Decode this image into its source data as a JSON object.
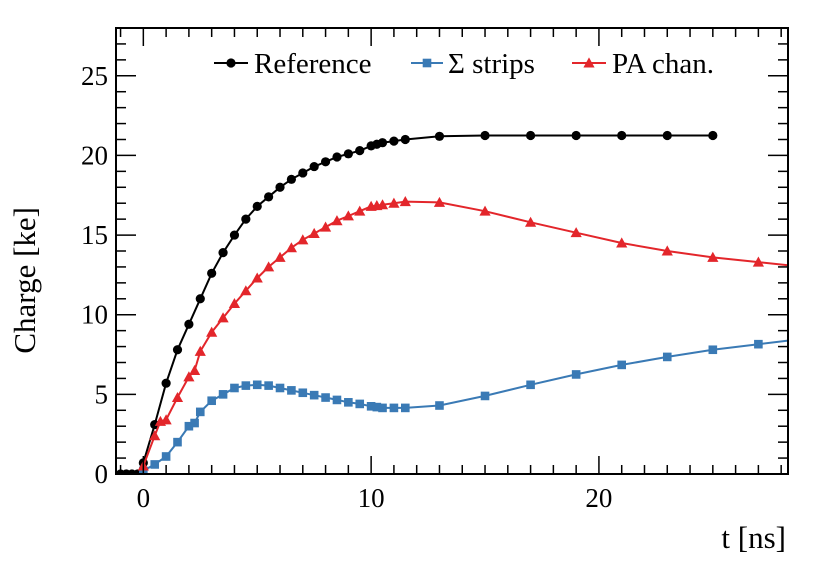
{
  "chart_data": {
    "type": "line",
    "xlabel": "t [ns]",
    "ylabel": "Charge [ke]",
    "xlim": [
      -1.2,
      28.3
    ],
    "ylim": [
      0,
      28
    ],
    "x_major_ticks": [
      0,
      10,
      20
    ],
    "x_tick_labels": [
      "0",
      "10",
      "20"
    ],
    "y_major_ticks": [
      0,
      5,
      10,
      15,
      20,
      25
    ],
    "y_tick_labels": [
      "0",
      "5",
      "10",
      "15",
      "20",
      "25"
    ],
    "legend_position": "top",
    "series": [
      {
        "name": "Reference",
        "color": "#000000",
        "marker": "circle",
        "x": [
          -1.0,
          -0.75,
          -0.5,
          -0.25,
          0.0,
          0.5,
          1.0,
          1.5,
          2.0,
          2.5,
          3.0,
          3.5,
          4.0,
          4.5,
          5.0,
          5.5,
          6.0,
          6.5,
          7.0,
          7.5,
          8.0,
          8.5,
          9.0,
          9.5,
          10.0,
          10.25,
          10.5,
          11.0,
          11.5,
          13.0,
          15.0,
          17.0,
          19.0,
          21.0,
          23.0,
          25.0
        ],
        "y": [
          0.0,
          0.0,
          0.0,
          0.0,
          0.7,
          3.1,
          5.7,
          7.8,
          9.4,
          11.0,
          12.6,
          13.9,
          15.0,
          16.0,
          16.8,
          17.4,
          18.0,
          18.5,
          18.9,
          19.3,
          19.6,
          19.9,
          20.1,
          20.3,
          20.6,
          20.7,
          20.8,
          20.9,
          21.0,
          21.2,
          21.25,
          21.25,
          21.25,
          21.25,
          21.25,
          21.25
        ]
      },
      {
        "name": "Σ strips",
        "color": "#3a7ab5",
        "marker": "square",
        "x": [
          0.0,
          0.5,
          1.0,
          1.5,
          2.0,
          2.25,
          2.5,
          3.0,
          3.5,
          4.0,
          4.5,
          5.0,
          5.5,
          6.0,
          6.5,
          7.0,
          7.5,
          8.0,
          8.5,
          9.0,
          9.5,
          10.0,
          10.25,
          10.5,
          11.0,
          11.5,
          13.0,
          15.0,
          17.0,
          19.0,
          21.0,
          23.0,
          25.0,
          27.0
        ],
        "y": [
          0.2,
          0.6,
          1.1,
          2.0,
          3.0,
          3.2,
          3.9,
          4.6,
          5.0,
          5.4,
          5.55,
          5.6,
          5.55,
          5.4,
          5.25,
          5.1,
          4.95,
          4.8,
          4.65,
          4.5,
          4.4,
          4.25,
          4.2,
          4.15,
          4.15,
          4.15,
          4.3,
          4.9,
          5.6,
          6.25,
          6.85,
          7.35,
          7.8,
          8.15
        ]
      },
      {
        "name": "PA chan.",
        "color": "#e3262b",
        "marker": "triangle",
        "x": [
          0.0,
          0.5,
          0.75,
          1.0,
          1.5,
          2.0,
          2.25,
          2.5,
          3.0,
          3.5,
          4.0,
          4.5,
          5.0,
          5.5,
          6.0,
          6.5,
          7.0,
          7.5,
          8.0,
          8.5,
          9.0,
          9.5,
          10.0,
          10.25,
          10.5,
          11.0,
          11.5,
          13.0,
          15.0,
          17.0,
          19.0,
          21.0,
          23.0,
          25.0,
          27.0
        ],
        "y": [
          0.5,
          2.4,
          3.3,
          3.4,
          4.8,
          6.1,
          6.5,
          7.7,
          8.9,
          9.8,
          10.7,
          11.5,
          12.3,
          13.0,
          13.6,
          14.2,
          14.7,
          15.1,
          15.5,
          15.9,
          16.2,
          16.5,
          16.8,
          16.85,
          16.9,
          17.0,
          17.1,
          17.05,
          16.5,
          15.8,
          15.15,
          14.5,
          14.0,
          13.6,
          13.3
        ]
      }
    ]
  }
}
